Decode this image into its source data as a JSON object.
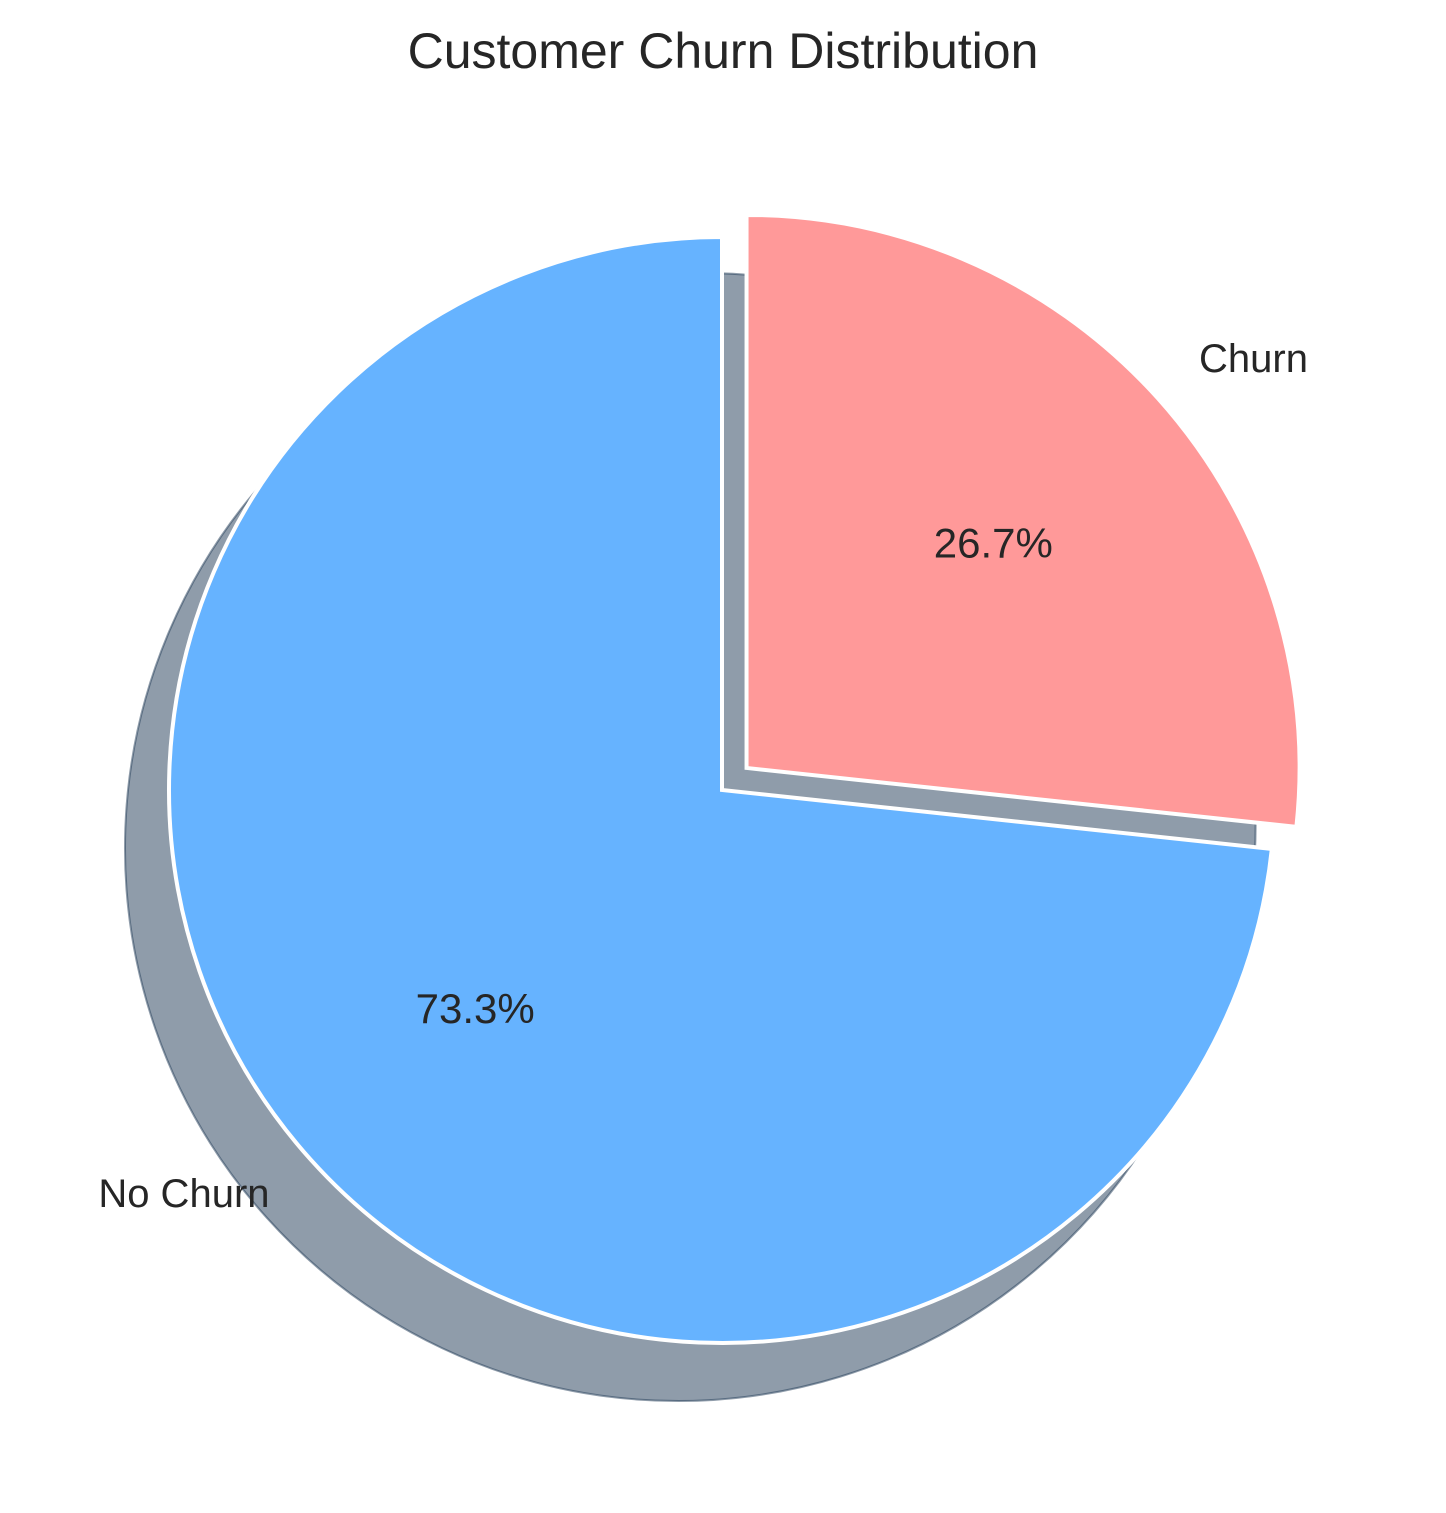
{
  "chart_data": {
    "type": "pie",
    "title": "Customer Churn Distribution",
    "categories": [
      "No Churn",
      "Churn"
    ],
    "values": [
      73.3,
      26.7
    ],
    "value_labels": [
      "73.3%",
      "26.7%"
    ],
    "colors": [
      "#66b3ff",
      "#ff9999"
    ],
    "start_angle_deg": 90,
    "direction": "counterclockwise",
    "exploded": [
      false,
      true
    ],
    "shadow": true,
    "legend": "none"
  }
}
